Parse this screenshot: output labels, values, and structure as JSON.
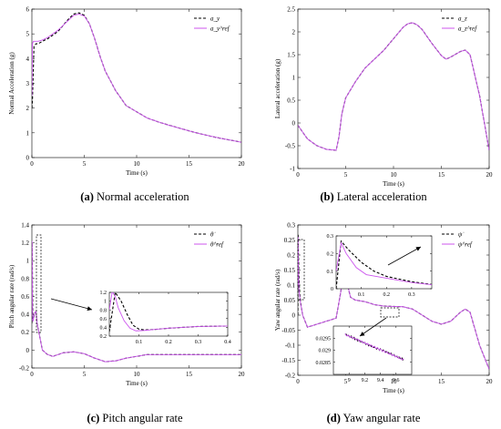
{
  "figure": {
    "colors": {
      "measured": "#000000",
      "reference": "#cc55ee",
      "axis": "#000000",
      "arrow": "#000000"
    },
    "panels": [
      {
        "id": "a",
        "caption_letter": "(a)",
        "caption_text": "Normal acceleration"
      },
      {
        "id": "b",
        "caption_letter": "(b)",
        "caption_text": "Lateral acceleration"
      },
      {
        "id": "c",
        "caption_letter": "(c)",
        "caption_text": "Pitch angular rate"
      },
      {
        "id": "d",
        "caption_letter": "(d)",
        "caption_text": "Yaw angular rate"
      }
    ]
  },
  "chart_data": [
    {
      "type": "line",
      "panel": "a",
      "xlabel": "Time (s)",
      "ylabel": "Normal Acceleration (g)",
      "xlim": [
        0,
        20
      ],
      "ylim": [
        0,
        6
      ],
      "xticks": [
        0,
        5,
        10,
        15,
        20
      ],
      "yticks": [
        0,
        1,
        2,
        3,
        4,
        5,
        6
      ],
      "grid": false,
      "legend": "top-right",
      "series": [
        {
          "name": "a_y",
          "style": "dashed",
          "x": [
            0,
            0.05,
            0.2,
            0.4,
            0.6,
            1,
            1.5,
            2,
            2.5,
            3,
            3.5,
            4,
            4.5,
            5,
            5.5,
            6,
            6.5,
            7,
            8,
            9,
            10,
            11,
            12,
            13,
            14,
            15,
            16,
            17,
            18,
            19,
            20
          ],
          "y": [
            2.0,
            2.3,
            4.5,
            4.6,
            4.6,
            4.7,
            4.8,
            4.95,
            5.1,
            5.35,
            5.6,
            5.8,
            5.85,
            5.75,
            5.4,
            4.8,
            4.1,
            3.5,
            2.7,
            2.1,
            1.85,
            1.6,
            1.45,
            1.32,
            1.2,
            1.08,
            0.97,
            0.87,
            0.78,
            0.7,
            0.62
          ]
        },
        {
          "name": "a_y^ref",
          "style": "solid",
          "x": [
            0,
            0.05,
            0.15,
            0.3,
            0.6,
            1,
            1.5,
            2,
            2.5,
            3,
            3.5,
            4,
            4.5,
            5,
            5.5,
            6,
            6.5,
            7,
            8,
            9,
            10,
            11,
            12,
            13,
            14,
            15,
            16,
            17,
            18,
            19,
            20
          ],
          "y": [
            2.5,
            4.6,
            4.7,
            4.7,
            4.7,
            4.75,
            4.85,
            5.0,
            5.15,
            5.35,
            5.55,
            5.75,
            5.8,
            5.72,
            5.4,
            4.8,
            4.1,
            3.5,
            2.7,
            2.1,
            1.85,
            1.6,
            1.45,
            1.32,
            1.2,
            1.08,
            0.97,
            0.87,
            0.78,
            0.7,
            0.62
          ]
        }
      ]
    },
    {
      "type": "line",
      "panel": "b",
      "xlabel": "Time (s)",
      "ylabel": "Lateral acceleration (g)",
      "xlim": [
        0,
        20
      ],
      "ylim": [
        -1,
        2.5
      ],
      "xticks": [
        0,
        5,
        10,
        15,
        20
      ],
      "yticks": [
        -1,
        -0.5,
        0,
        0.5,
        1,
        1.5,
        2,
        2.5
      ],
      "grid": false,
      "legend": "top-right",
      "series": [
        {
          "name": "a_z",
          "style": "dashed",
          "x": [
            0,
            0.5,
            1,
            2,
            3,
            4,
            4.3,
            4.6,
            5,
            6,
            7,
            8,
            9,
            10,
            11,
            11.5,
            12,
            12.5,
            13,
            14,
            15,
            15.5,
            16,
            17,
            17.5,
            18,
            19,
            20
          ],
          "y": [
            -0.05,
            -0.2,
            -0.35,
            -0.5,
            -0.58,
            -0.6,
            -0.3,
            0.2,
            0.55,
            0.9,
            1.2,
            1.4,
            1.6,
            1.85,
            2.1,
            2.18,
            2.2,
            2.15,
            2.05,
            1.75,
            1.48,
            1.4,
            1.45,
            1.57,
            1.6,
            1.5,
            0.6,
            -0.6
          ]
        },
        {
          "name": "a_z^ref",
          "style": "solid",
          "x": [
            0,
            0.5,
            1,
            2,
            3,
            4,
            4.3,
            4.6,
            5,
            6,
            7,
            8,
            9,
            10,
            11,
            11.5,
            12,
            12.5,
            13,
            14,
            15,
            15.5,
            16,
            17,
            17.5,
            18,
            19,
            20
          ],
          "y": [
            -0.05,
            -0.2,
            -0.35,
            -0.5,
            -0.58,
            -0.6,
            -0.3,
            0.2,
            0.55,
            0.9,
            1.2,
            1.4,
            1.6,
            1.85,
            2.1,
            2.18,
            2.2,
            2.15,
            2.05,
            1.75,
            1.48,
            1.4,
            1.45,
            1.57,
            1.6,
            1.5,
            0.6,
            -0.6
          ]
        }
      ]
    },
    {
      "type": "line",
      "panel": "c",
      "xlabel": "Time (s)",
      "ylabel": "Pitch angular rate (rad/s)",
      "xlim": [
        0,
        20
      ],
      "ylim": [
        -0.2,
        1.4
      ],
      "xticks": [
        0,
        5,
        10,
        15,
        20
      ],
      "yticks": [
        -0.2,
        0,
        0.2,
        0.4,
        0.6,
        0.8,
        1,
        1.2,
        1.4
      ],
      "grid": false,
      "legend": "top-right",
      "series": [
        {
          "name": "θ̇",
          "style": "dashed",
          "x": [
            0,
            0.02,
            0.04,
            0.06,
            0.08,
            0.1,
            0.12,
            0.15,
            0.2,
            0.3,
            0.4,
            0.5,
            1,
            1.5,
            2,
            3,
            4,
            5,
            6,
            7,
            8,
            9,
            10,
            11,
            12,
            14,
            16,
            18,
            20
          ],
          "y": [
            0.3,
            1.2,
            1.0,
            0.7,
            0.45,
            0.36,
            0.34,
            0.35,
            0.38,
            0.42,
            0.43,
            0.3,
            0.0,
            -0.05,
            -0.07,
            -0.03,
            -0.02,
            -0.04,
            -0.09,
            -0.13,
            -0.12,
            -0.09,
            -0.07,
            -0.05,
            -0.05,
            -0.05,
            -0.05,
            -0.05,
            -0.05
          ]
        },
        {
          "name": "θ̇^ref",
          "style": "solid",
          "x": [
            0,
            0.01,
            0.02,
            0.03,
            0.05,
            0.07,
            0.09,
            0.12,
            0.15,
            0.2,
            0.3,
            0.4,
            0.5,
            1,
            1.5,
            2,
            3,
            4,
            5,
            6,
            7,
            8,
            9,
            10,
            11,
            12,
            14,
            16,
            18,
            20
          ],
          "y": [
            0.8,
            1.22,
            1.1,
            0.85,
            0.55,
            0.38,
            0.32,
            0.33,
            0.35,
            0.38,
            0.42,
            0.43,
            0.3,
            0.0,
            -0.05,
            -0.07,
            -0.03,
            -0.02,
            -0.04,
            -0.09,
            -0.13,
            -0.12,
            -0.09,
            -0.07,
            -0.05,
            -0.05,
            -0.05,
            -0.05,
            -0.05,
            -0.05
          ]
        }
      ],
      "inset": {
        "xlim": [
          0,
          0.4
        ],
        "ylim": [
          0.2,
          1.2
        ],
        "xticks": [
          0.1,
          0.2,
          0.3,
          0.4
        ],
        "yticks": [
          0.2,
          0.4,
          0.6,
          0.8,
          1,
          1.2
        ]
      }
    },
    {
      "type": "line",
      "panel": "d",
      "xlabel": "Time (s)",
      "ylabel": "Yaw angular rate (rad/s)",
      "xlim": [
        0,
        20
      ],
      "ylim": [
        -0.2,
        0.3
      ],
      "xticks": [
        0,
        5,
        10,
        15,
        20
      ],
      "yticks": [
        -0.2,
        -0.15,
        -0.1,
        -0.05,
        0,
        0.05,
        0.1,
        0.15,
        0.2,
        0.25,
        0.3
      ],
      "grid": false,
      "legend": "top-right",
      "series": [
        {
          "name": "ψ̇",
          "style": "dashed",
          "x": [
            0,
            0.02,
            0.05,
            0.1,
            0.15,
            0.2,
            0.3,
            0.4,
            0.5,
            1,
            2,
            3,
            4,
            4.5,
            4.8,
            5,
            5.2,
            5.5,
            6,
            7,
            8,
            9,
            10,
            11,
            12,
            13,
            14,
            15,
            16,
            17,
            17.5,
            18,
            19,
            20
          ],
          "y": [
            0.0,
            0.27,
            0.22,
            0.15,
            0.1,
            0.07,
            0.04,
            0.02,
            0.0,
            -0.04,
            -0.03,
            -0.02,
            -0.01,
            0.08,
            0.15,
            0.16,
            0.1,
            0.06,
            0.05,
            0.045,
            0.035,
            0.03,
            0.029,
            0.028,
            0.02,
            0.0,
            -0.02,
            -0.03,
            -0.02,
            0.01,
            0.02,
            0.01,
            -0.1,
            -0.18
          ]
        },
        {
          "name": "ψ̇^ref",
          "style": "solid",
          "x": [
            0,
            0.02,
            0.04,
            0.08,
            0.12,
            0.2,
            0.3,
            0.4,
            0.5,
            1,
            2,
            3,
            4,
            4.5,
            4.8,
            5,
            5.2,
            5.5,
            6,
            7,
            8,
            9,
            10,
            11,
            12,
            13,
            14,
            15,
            16,
            17,
            17.5,
            18,
            19,
            20
          ],
          "y": [
            0.1,
            0.26,
            0.2,
            0.12,
            0.08,
            0.06,
            0.035,
            0.02,
            0.0,
            -0.04,
            -0.03,
            -0.02,
            -0.01,
            0.08,
            0.15,
            0.16,
            0.1,
            0.06,
            0.05,
            0.045,
            0.035,
            0.03,
            0.029,
            0.028,
            0.02,
            0.0,
            -0.02,
            -0.03,
            -0.02,
            0.01,
            0.02,
            0.01,
            -0.1,
            -0.18
          ]
        }
      ],
      "inset": {
        "xlim": [
          0,
          0.38
        ],
        "ylim": [
          0,
          0.3
        ],
        "xticks": [
          0.1,
          0.2,
          0.3
        ],
        "yticks": [
          0,
          0.1,
          0.2,
          0.3
        ]
      },
      "inset2": {
        "xlim": [
          8.8,
          9.8
        ],
        "ylim": [
          0.028,
          0.03
        ],
        "xticks": [
          9,
          9.2,
          9.4,
          9.6
        ],
        "yticks": [
          0.0285,
          0.029,
          0.0295
        ]
      }
    }
  ],
  "legend_labels": {
    "a": [
      "a_y",
      "a_y^ref"
    ],
    "b": [
      "a_z",
      "a_z^ref"
    ],
    "c": [
      "θ̇",
      "θ̇^ref"
    ],
    "d": [
      "ψ̇",
      "ψ̇^ref"
    ]
  },
  "axis_labels": {
    "a": {
      "x": "Time (s)",
      "y": "Normal Acceleration (g)"
    },
    "b": {
      "x": "Time (s)",
      "y": "Lateral acceleration (g)"
    },
    "c": {
      "x": "Time (s)",
      "y": "Pitch angular rate (rad/s)"
    },
    "d": {
      "x": "Time (s)",
      "y": "Yaw angular rate (rad/s)"
    }
  }
}
